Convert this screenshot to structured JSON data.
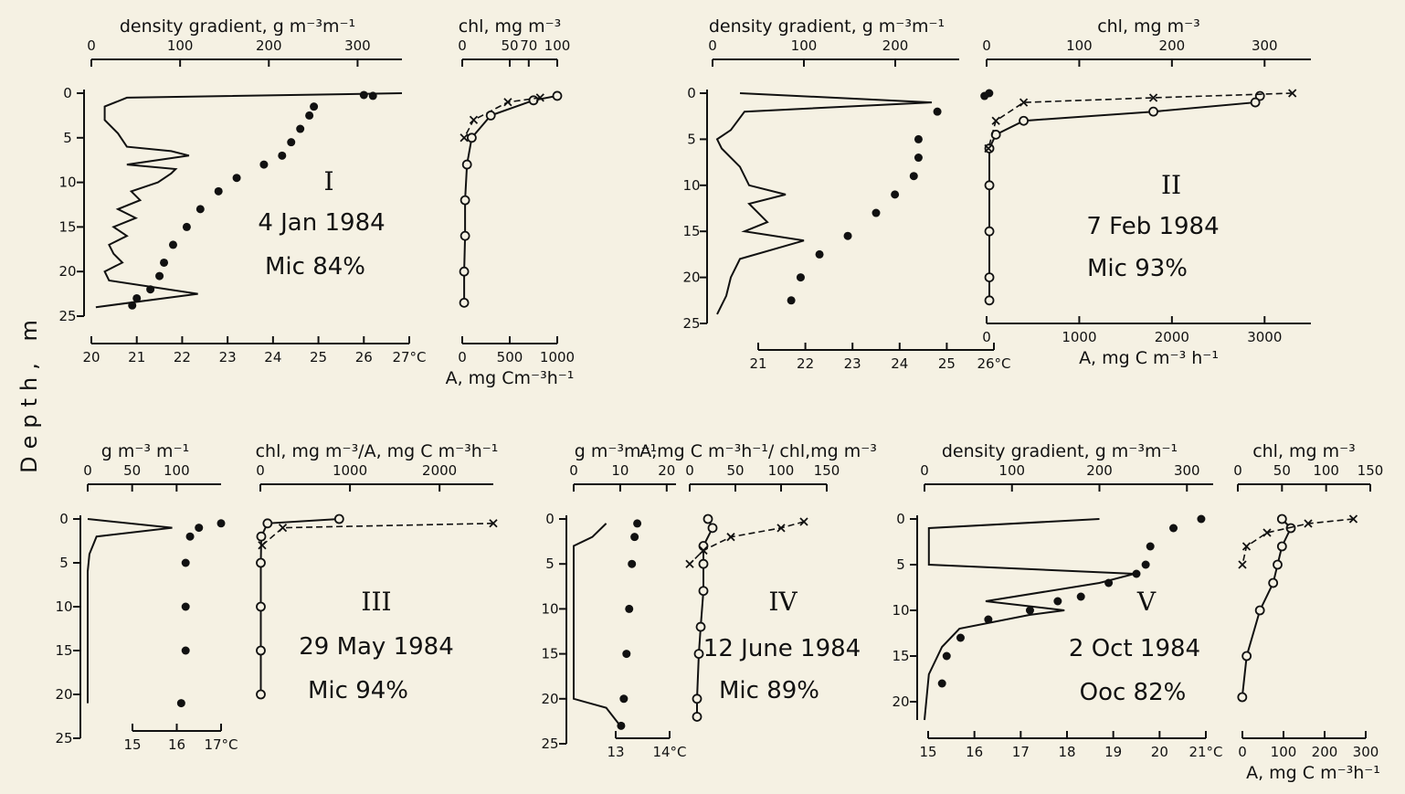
{
  "figure": {
    "depth_label": "Depth, m"
  },
  "chart_data": [
    {
      "id": "I",
      "type": "line",
      "roman": "I",
      "date": "4 Jan 1984",
      "mic": "Mic 84%",
      "depth_range": [
        0,
        25
      ],
      "depth_ticks": [
        0,
        5,
        10,
        15,
        20,
        25
      ],
      "density_axis": {
        "label": "density gradient, g m⁻³m⁻¹",
        "range": [
          0,
          350
        ],
        "ticks": [
          0,
          100,
          200,
          300
        ]
      },
      "temp_axis": {
        "label": "",
        "range": [
          20,
          27
        ],
        "ticks": [
          "20",
          "21",
          "22",
          "23",
          "24",
          "25",
          "26",
          "27°C"
        ]
      },
      "chl_axis": {
        "label": "chl, mg m⁻³",
        "range": [
          0,
          100
        ],
        "ticks": [
          "0",
          "50",
          "70",
          "100"
        ],
        "tick_values": [
          0,
          50,
          70,
          100
        ]
      },
      "a_axis": {
        "label": "A, mg Cm⁻³h⁻¹",
        "range": [
          0,
          1000
        ],
        "ticks": [
          "0",
          "500",
          "1000"
        ],
        "tick_values": [
          0,
          500,
          1000
        ]
      },
      "density_series": [
        [
          350,
          0
        ],
        [
          40,
          0.5
        ],
        [
          15,
          1.5
        ],
        [
          15,
          3
        ],
        [
          30,
          4.5
        ],
        [
          40,
          6
        ],
        [
          90,
          6.5
        ],
        [
          110,
          7
        ],
        [
          40,
          8
        ],
        [
          95,
          8.5
        ],
        [
          90,
          9
        ],
        [
          75,
          10
        ],
        [
          45,
          11
        ],
        [
          55,
          12
        ],
        [
          30,
          13
        ],
        [
          50,
          14
        ],
        [
          25,
          15
        ],
        [
          40,
          16
        ],
        [
          20,
          17
        ],
        [
          25,
          18
        ],
        [
          35,
          19
        ],
        [
          15,
          20
        ],
        [
          20,
          21
        ],
        [
          120,
          22.5
        ],
        [
          5,
          24
        ]
      ],
      "temp_series": [
        [
          26,
          0.2
        ],
        [
          26.2,
          0.3
        ],
        [
          24.9,
          1.5
        ],
        [
          24.8,
          2.5
        ],
        [
          24.6,
          4
        ],
        [
          24.4,
          5.5
        ],
        [
          24.2,
          7
        ],
        [
          23.8,
          8
        ],
        [
          23.2,
          9.5
        ],
        [
          22.8,
          11
        ],
        [
          22.4,
          13
        ],
        [
          22.1,
          15
        ],
        [
          21.8,
          17
        ],
        [
          21.6,
          19
        ],
        [
          21.5,
          20.5
        ],
        [
          21.3,
          22
        ],
        [
          21,
          23
        ],
        [
          20.9,
          23.8
        ]
      ],
      "chl_series": [
        [
          100,
          0.3
        ],
        [
          75,
          0.8
        ],
        [
          30,
          2.5
        ],
        [
          10,
          5
        ],
        [
          5,
          8
        ],
        [
          3,
          12
        ],
        [
          3,
          16
        ],
        [
          2,
          20
        ],
        [
          2,
          23.5
        ]
      ],
      "a_series": [
        [
          820,
          0.5
        ],
        [
          480,
          1
        ],
        [
          120,
          3
        ],
        [
          20,
          5
        ]
      ]
    },
    {
      "id": "II",
      "type": "line",
      "roman": "II",
      "date": "7 Feb 1984",
      "mic": "Mic 93%",
      "depth_range": [
        0,
        25
      ],
      "depth_ticks": [
        0,
        5,
        10,
        15,
        20,
        25
      ],
      "density_axis": {
        "label": "density gradient, g m⁻³m⁻¹",
        "range": [
          0,
          270
        ],
        "ticks": [
          0,
          100,
          200
        ]
      },
      "temp_axis": {
        "label": "",
        "range": [
          21,
          26
        ],
        "ticks": [
          "21",
          "22",
          "23",
          "24",
          "25",
          "26°C"
        ]
      },
      "chl_axis": {
        "label": "chl, mg m⁻³",
        "range": [
          0,
          350
        ],
        "ticks": [
          "0",
          "100",
          "200",
          "300"
        ],
        "tick_values": [
          0,
          100,
          200,
          300
        ]
      },
      "a_axis": {
        "label": "A, mg C m⁻³ h⁻¹",
        "range": [
          0,
          3500
        ],
        "ticks": [
          "0",
          "1000",
          "2000",
          "3000"
        ],
        "tick_values": [
          0,
          1000,
          2000,
          3000
        ]
      },
      "density_series": [
        [
          30,
          0
        ],
        [
          240,
          1
        ],
        [
          35,
          2
        ],
        [
          20,
          4
        ],
        [
          5,
          5
        ],
        [
          10,
          6
        ],
        [
          30,
          8
        ],
        [
          40,
          10
        ],
        [
          80,
          11
        ],
        [
          40,
          12
        ],
        [
          60,
          14
        ],
        [
          35,
          15
        ],
        [
          100,
          16
        ],
        [
          30,
          18
        ],
        [
          20,
          20
        ],
        [
          15,
          22
        ],
        [
          5,
          24
        ]
      ],
      "temp_series": [
        [
          25.9,
          0
        ],
        [
          25.8,
          0.3
        ],
        [
          24.8,
          2
        ],
        [
          24.4,
          5
        ],
        [
          24.4,
          7
        ],
        [
          24.3,
          9
        ],
        [
          23.9,
          11
        ],
        [
          23.5,
          13
        ],
        [
          22.9,
          15.5
        ],
        [
          22.3,
          17.5
        ],
        [
          21.9,
          20
        ],
        [
          21.7,
          22.5
        ]
      ],
      "chl_series": [
        [
          295,
          0.3
        ],
        [
          290,
          1
        ],
        [
          180,
          2
        ],
        [
          40,
          3
        ],
        [
          10,
          4.5
        ],
        [
          3,
          6
        ],
        [
          3,
          10
        ],
        [
          3,
          15
        ],
        [
          3,
          20
        ],
        [
          3,
          22.5
        ]
      ],
      "a_series": [
        [
          3300,
          0
        ],
        [
          1800,
          0.5
        ],
        [
          400,
          1
        ],
        [
          100,
          3
        ],
        [
          20,
          6
        ]
      ]
    },
    {
      "id": "III",
      "type": "line",
      "roman": "III",
      "date": "29 May 1984",
      "mic": "Mic 94%",
      "depth_range": [
        0,
        25
      ],
      "depth_ticks": [
        0,
        5,
        10,
        15,
        20,
        25
      ],
      "density_axis": {
        "label": "g m⁻³ m⁻¹",
        "range": [
          0,
          150
        ],
        "ticks": [
          0,
          50,
          100
        ]
      },
      "temp_axis": {
        "label": "",
        "range": [
          15,
          17
        ],
        "ticks": [
          "15",
          "16",
          "17°C"
        ]
      },
      "chl_axis": {
        "label": "chl, mg m⁻³/A, mg C m⁻³h⁻¹",
        "range": [
          0,
          2600
        ],
        "ticks": [
          "0",
          "1000",
          "2000"
        ],
        "tick_values": [
          0,
          1000,
          2000
        ]
      },
      "a_axis": {
        "label": "",
        "range": [
          0,
          2600
        ],
        "ticks": [],
        "tick_values": []
      },
      "density_series": [
        [
          0,
          0
        ],
        [
          95,
          1
        ],
        [
          10,
          2
        ],
        [
          2,
          4
        ],
        [
          0,
          6
        ],
        [
          0,
          21
        ]
      ],
      "temp_series": [
        [
          17,
          0.5
        ],
        [
          16.5,
          1
        ],
        [
          16.3,
          2
        ],
        [
          16.2,
          5
        ],
        [
          16.2,
          10
        ],
        [
          16.2,
          15
        ],
        [
          16.1,
          21
        ]
      ],
      "chl_series": [
        [
          880,
          0
        ],
        [
          80,
          0.5
        ],
        [
          10,
          2
        ],
        [
          5,
          5
        ],
        [
          5,
          10
        ],
        [
          5,
          15
        ],
        [
          5,
          20
        ]
      ],
      "a_series": [
        [
          2600,
          0.5
        ],
        [
          250,
          1
        ],
        [
          20,
          3
        ]
      ]
    },
    {
      "id": "IV",
      "type": "line",
      "roman": "IV",
      "date": "12 June 1984",
      "mic": "Mic 89%",
      "depth_range": [
        0,
        25
      ],
      "depth_ticks": [
        0,
        5,
        10,
        15,
        20,
        25
      ],
      "density_axis": {
        "label": "g m⁻³m⁻¹",
        "range": [
          0,
          22
        ],
        "ticks": [
          0,
          10,
          20
        ]
      },
      "temp_axis": {
        "label": "",
        "range": [
          13,
          14
        ],
        "ticks": [
          "13",
          "14°C"
        ]
      },
      "chl_axis": {
        "label": "A,mg C m⁻³h⁻¹/ chl,mg m⁻³",
        "range": [
          0,
          150
        ],
        "ticks": [
          "0",
          "50",
          "100",
          "150"
        ],
        "tick_values": [
          0,
          50,
          100,
          150
        ]
      },
      "a_axis": {
        "label": "",
        "range": [
          0,
          150
        ],
        "ticks": [],
        "tick_values": []
      },
      "density_series": [
        [
          7,
          0.5
        ],
        [
          4,
          2
        ],
        [
          0,
          3
        ],
        [
          0,
          5
        ],
        [
          0,
          20
        ],
        [
          7,
          21
        ],
        [
          10,
          23
        ]
      ],
      "temp_series": [
        [
          13.4,
          0.5
        ],
        [
          13.35,
          2
        ],
        [
          13.3,
          5
        ],
        [
          13.25,
          10
        ],
        [
          13.2,
          15
        ],
        [
          13.15,
          20
        ],
        [
          13.1,
          23
        ]
      ],
      "chl_series": [
        [
          20,
          0
        ],
        [
          25,
          1
        ],
        [
          15,
          3
        ],
        [
          15,
          5
        ],
        [
          15,
          8
        ],
        [
          12,
          12
        ],
        [
          10,
          15
        ],
        [
          8,
          20
        ],
        [
          8,
          22
        ]
      ],
      "a_series": [
        [
          125,
          0.3
        ],
        [
          100,
          1
        ],
        [
          45,
          2
        ],
        [
          15,
          3.5
        ],
        [
          0,
          5
        ]
      ]
    },
    {
      "id": "V",
      "type": "line",
      "roman": "V",
      "date": "2 Oct 1984",
      "mic": "Ooc 82%",
      "depth_range": [
        0,
        22
      ],
      "depth_ticks": [
        0,
        5,
        10,
        15,
        20
      ],
      "density_axis": {
        "label": "density gradient, g m⁻³m⁻¹",
        "range": [
          0,
          330
        ],
        "ticks": [
          0,
          100,
          200,
          300
        ]
      },
      "temp_axis": {
        "label": "",
        "range": [
          15,
          21
        ],
        "ticks": [
          "15",
          "16",
          "17",
          "18",
          "19",
          "20",
          "21°C"
        ]
      },
      "chl_axis": {
        "label": "chl, mg m⁻³",
        "range": [
          0,
          150
        ],
        "ticks": [
          "0",
          "50",
          "100",
          "150"
        ],
        "tick_values": [
          0,
          50,
          100,
          150
        ]
      },
      "a_axis": {
        "label": "A, mg C m⁻³h⁻¹",
        "range": [
          0,
          300
        ],
        "ticks": [
          "0",
          "100",
          "200",
          "300"
        ],
        "tick_values": [
          0,
          100,
          200,
          300
        ]
      },
      "density_series": [
        [
          200,
          0
        ],
        [
          5,
          1
        ],
        [
          5,
          5
        ],
        [
          240,
          6
        ],
        [
          200,
          7
        ],
        [
          70,
          9
        ],
        [
          160,
          10
        ],
        [
          120,
          10.5
        ],
        [
          40,
          12
        ],
        [
          20,
          14
        ],
        [
          5,
          17
        ],
        [
          0,
          22
        ]
      ],
      "temp_series": [
        [
          20.9,
          0
        ],
        [
          20.3,
          1
        ],
        [
          19.8,
          3
        ],
        [
          19.7,
          5
        ],
        [
          19.5,
          6
        ],
        [
          18.9,
          7
        ],
        [
          18.3,
          8.5
        ],
        [
          17.8,
          9
        ],
        [
          17.2,
          10
        ],
        [
          16.3,
          11
        ],
        [
          15.7,
          13
        ],
        [
          15.4,
          15
        ],
        [
          15.3,
          18
        ]
      ],
      "chl_series": [
        [
          50,
          0
        ],
        [
          60,
          1
        ],
        [
          50,
          3
        ],
        [
          45,
          5
        ],
        [
          40,
          7
        ],
        [
          25,
          10
        ],
        [
          10,
          15
        ],
        [
          5,
          19.5
        ]
      ],
      "a_series": [
        [
          270,
          0
        ],
        [
          160,
          0.5
        ],
        [
          60,
          1.5
        ],
        [
          10,
          3
        ],
        [
          0,
          5
        ]
      ]
    }
  ]
}
